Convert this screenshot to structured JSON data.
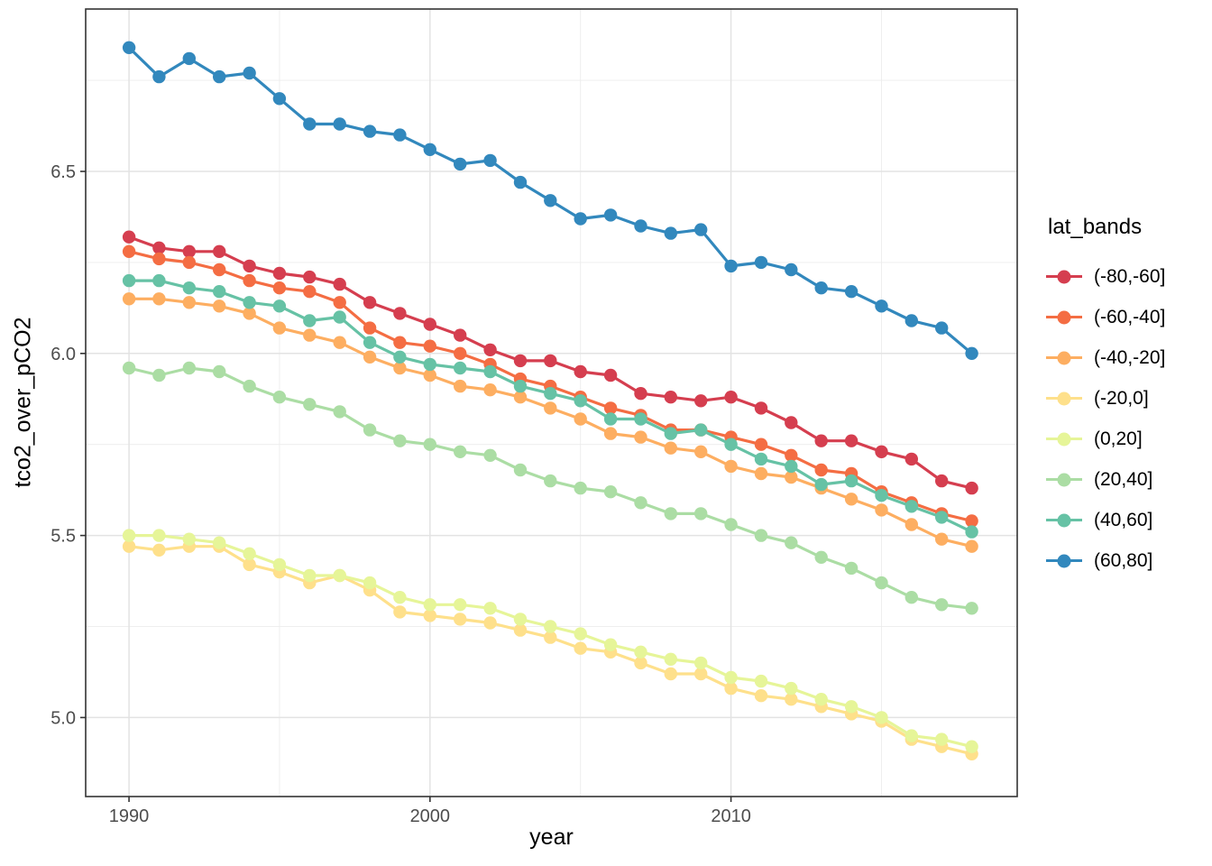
{
  "chart_data": {
    "type": "line",
    "title": "",
    "xlabel": "year",
    "ylabel": "tco2_over_pCO2",
    "legend_title": "lat_bands",
    "legend_position": "right",
    "grid": true,
    "panel_bg": "#ffffff",
    "grid_major_color": "#e3e3e3",
    "grid_minor_color": "#ececec",
    "panel_border_color": "#333333",
    "tick_label_color": "#4d4d4d",
    "xlim": [
      1988.56,
      2019.51
    ],
    "ylim": [
      4.783,
      6.946
    ],
    "x_ticks": [
      1990,
      2000,
      2010
    ],
    "x_tick_labels": [
      "1990",
      "2000",
      "2010"
    ],
    "x_minor_ticks": [
      1995,
      2005,
      2015
    ],
    "y_ticks": [
      5.0,
      5.5,
      6.0,
      6.5
    ],
    "y_tick_labels": [
      "5.0",
      "5.5",
      "6.0",
      "6.5"
    ],
    "y_minor_ticks": [
      5.25,
      5.75,
      6.25,
      6.75
    ],
    "x": [
      1990,
      1991,
      1992,
      1993,
      1994,
      1995,
      1996,
      1997,
      1998,
      1999,
      2000,
      2001,
      2002,
      2003,
      2004,
      2005,
      2006,
      2007,
      2008,
      2009,
      2010,
      2011,
      2012,
      2013,
      2014,
      2015,
      2016,
      2017,
      2018
    ],
    "series": [
      {
        "name": "(-80,-60]",
        "color": "#D53E4F",
        "values": [
          6.32,
          6.29,
          6.28,
          6.28,
          6.24,
          6.22,
          6.21,
          6.19,
          6.14,
          6.11,
          6.08,
          6.05,
          6.01,
          5.98,
          5.98,
          5.95,
          5.94,
          5.89,
          5.88,
          5.87,
          5.88,
          5.85,
          5.81,
          5.76,
          5.76,
          5.73,
          5.71,
          5.65,
          5.63
        ]
      },
      {
        "name": "(-60,-40]",
        "color": "#F46D43",
        "values": [
          6.28,
          6.26,
          6.25,
          6.23,
          6.2,
          6.18,
          6.17,
          6.14,
          6.07,
          6.03,
          6.02,
          6.0,
          5.97,
          5.93,
          5.91,
          5.88,
          5.85,
          5.83,
          5.79,
          5.79,
          5.77,
          5.75,
          5.72,
          5.68,
          5.67,
          5.62,
          5.59,
          5.56,
          5.54
        ]
      },
      {
        "name": "(-40,-20]",
        "color": "#FDAE61",
        "values": [
          6.15,
          6.15,
          6.14,
          6.13,
          6.11,
          6.07,
          6.05,
          6.03,
          5.99,
          5.96,
          5.94,
          5.91,
          5.9,
          5.88,
          5.85,
          5.82,
          5.78,
          5.77,
          5.74,
          5.73,
          5.69,
          5.67,
          5.66,
          5.63,
          5.6,
          5.57,
          5.53,
          5.49,
          5.47
        ]
      },
      {
        "name": "(-20,0]",
        "color": "#FEE08B",
        "values": [
          5.47,
          5.46,
          5.47,
          5.47,
          5.42,
          5.4,
          5.37,
          5.39,
          5.35,
          5.29,
          5.28,
          5.27,
          5.26,
          5.24,
          5.22,
          5.19,
          5.18,
          5.15,
          5.12,
          5.12,
          5.08,
          5.06,
          5.05,
          5.03,
          5.01,
          4.99,
          4.94,
          4.92,
          4.9
        ]
      },
      {
        "name": "(0,20]",
        "color": "#E6F598",
        "values": [
          5.5,
          5.5,
          5.49,
          5.48,
          5.45,
          5.42,
          5.39,
          5.39,
          5.37,
          5.33,
          5.31,
          5.31,
          5.3,
          5.27,
          5.25,
          5.23,
          5.2,
          5.18,
          5.16,
          5.15,
          5.11,
          5.1,
          5.08,
          5.05,
          5.03,
          5.0,
          4.95,
          4.94,
          4.92
        ]
      },
      {
        "name": "(20,40]",
        "color": "#ABDDA4",
        "values": [
          5.96,
          5.94,
          5.96,
          5.95,
          5.91,
          5.88,
          5.86,
          5.84,
          5.79,
          5.76,
          5.75,
          5.73,
          5.72,
          5.68,
          5.65,
          5.63,
          5.62,
          5.59,
          5.56,
          5.56,
          5.53,
          5.5,
          5.48,
          5.44,
          5.41,
          5.37,
          5.33,
          5.31,
          5.3
        ]
      },
      {
        "name": "(40,60]",
        "color": "#66C2A5",
        "values": [
          6.2,
          6.2,
          6.18,
          6.17,
          6.14,
          6.13,
          6.09,
          6.1,
          6.03,
          5.99,
          5.97,
          5.96,
          5.95,
          5.91,
          5.89,
          5.87,
          5.82,
          5.82,
          5.78,
          5.79,
          5.75,
          5.71,
          5.69,
          5.64,
          5.65,
          5.61,
          5.58,
          5.55,
          5.51
        ]
      },
      {
        "name": "(60,80]",
        "color": "#3288BD",
        "values": [
          6.84,
          6.76,
          6.81,
          6.76,
          6.77,
          6.7,
          6.63,
          6.63,
          6.61,
          6.6,
          6.56,
          6.52,
          6.53,
          6.47,
          6.42,
          6.37,
          6.38,
          6.35,
          6.33,
          6.34,
          6.24,
          6.25,
          6.23,
          6.18,
          6.17,
          6.13,
          6.09,
          6.07,
          6.0
        ]
      }
    ]
  }
}
